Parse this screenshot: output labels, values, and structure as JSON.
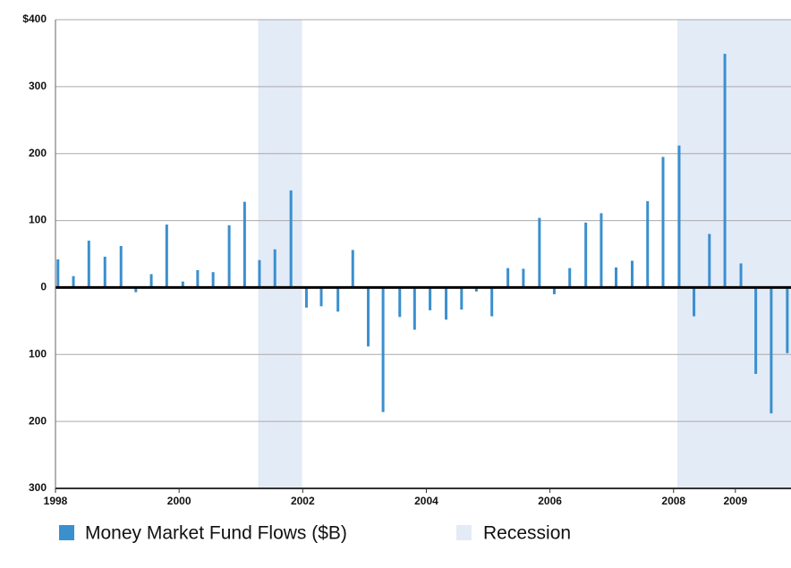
{
  "chart_data": {
    "type": "bar",
    "x": [
      1998.04,
      1998.29,
      1998.54,
      1998.8,
      1999.06,
      1999.3,
      1999.55,
      1999.8,
      2000.06,
      2000.3,
      2000.55,
      2000.81,
      2001.06,
      2001.3,
      2001.55,
      2001.81,
      2002.06,
      2002.3,
      2002.57,
      2002.81,
      2003.06,
      2003.3,
      2003.57,
      2003.81,
      2004.06,
      2004.32,
      2004.57,
      2004.81,
      2005.06,
      2005.32,
      2005.57,
      2005.83,
      2006.07,
      2006.32,
      2006.58,
      2006.83,
      2007.07,
      2007.33,
      2007.58,
      2007.83,
      2008.09,
      2008.33,
      2008.58,
      2008.83,
      2009.09,
      2009.33,
      2009.58,
      2009.84
    ],
    "series": [
      {
        "name": "Money Market Fund Flows ($B)",
        "color": "#3a8fcf",
        "values": [
          42,
          17,
          70,
          46,
          62,
          -7,
          20,
          94,
          9,
          26,
          23,
          93,
          128,
          41,
          57,
          145,
          -30,
          -28,
          -36,
          56,
          -88,
          -186,
          -44,
          -63,
          -34,
          -48,
          -33,
          -6,
          -43,
          29,
          28,
          104,
          -10,
          29,
          97,
          111,
          30,
          40,
          129,
          195,
          212,
          -43,
          80,
          349,
          36,
          -129,
          -188,
          -98
        ]
      }
    ],
    "bands": {
      "name": "Recession",
      "color": "#e3ebf7",
      "ranges": [
        [
          2001.28,
          2001.99
        ],
        [
          2008.06,
          2009.9
        ]
      ]
    },
    "xlim": [
      1998,
      2009.9
    ],
    "xticks": [
      1998,
      2000,
      2002,
      2004,
      2006,
      2008,
      2009
    ],
    "ylim": [
      -300,
      400
    ],
    "yticks": [
      {
        "value": -300,
        "label": "300"
      },
      {
        "value": -200,
        "label": "200"
      },
      {
        "value": -100,
        "label": "100"
      },
      0,
      100,
      200,
      300,
      {
        "value": 400,
        "label": "$400"
      }
    ],
    "grid": true
  }
}
